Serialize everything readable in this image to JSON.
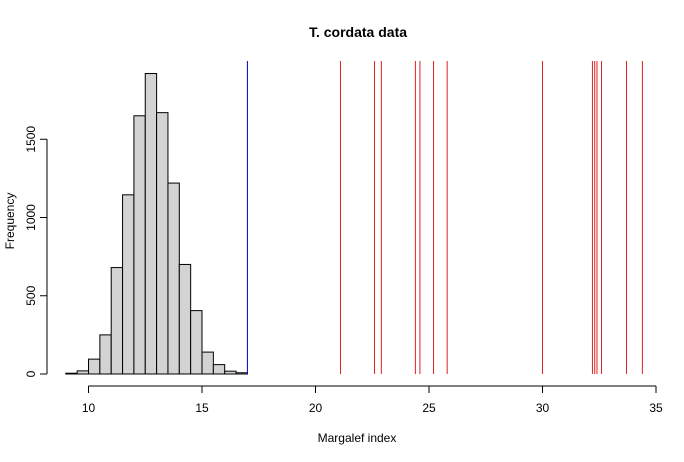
{
  "chart_data": {
    "type": "bar",
    "title": "T. cordata data",
    "xlabel": "Margalef index",
    "ylabel": "Frequency",
    "xlim": [
      8.7,
      35
    ],
    "ylim": [
      0,
      2000
    ],
    "xticks": [
      10,
      15,
      20,
      25,
      30,
      35
    ],
    "yticks": [
      0,
      500,
      1000,
      1500
    ],
    "bin_width": 0.5,
    "bin_start": 9,
    "values": [
      5,
      20,
      95,
      250,
      680,
      1145,
      1650,
      1920,
      1670,
      1220,
      700,
      405,
      140,
      60,
      18,
      8
    ],
    "blue_line": {
      "x": 17.0,
      "color": "#0000cd"
    },
    "red_lines": {
      "color": "#dd2222",
      "x": [
        21.1,
        22.6,
        22.9,
        24.4,
        24.6,
        25.2,
        25.8,
        30.0,
        32.2,
        32.3,
        32.4,
        32.6,
        33.7,
        34.4
      ]
    }
  }
}
